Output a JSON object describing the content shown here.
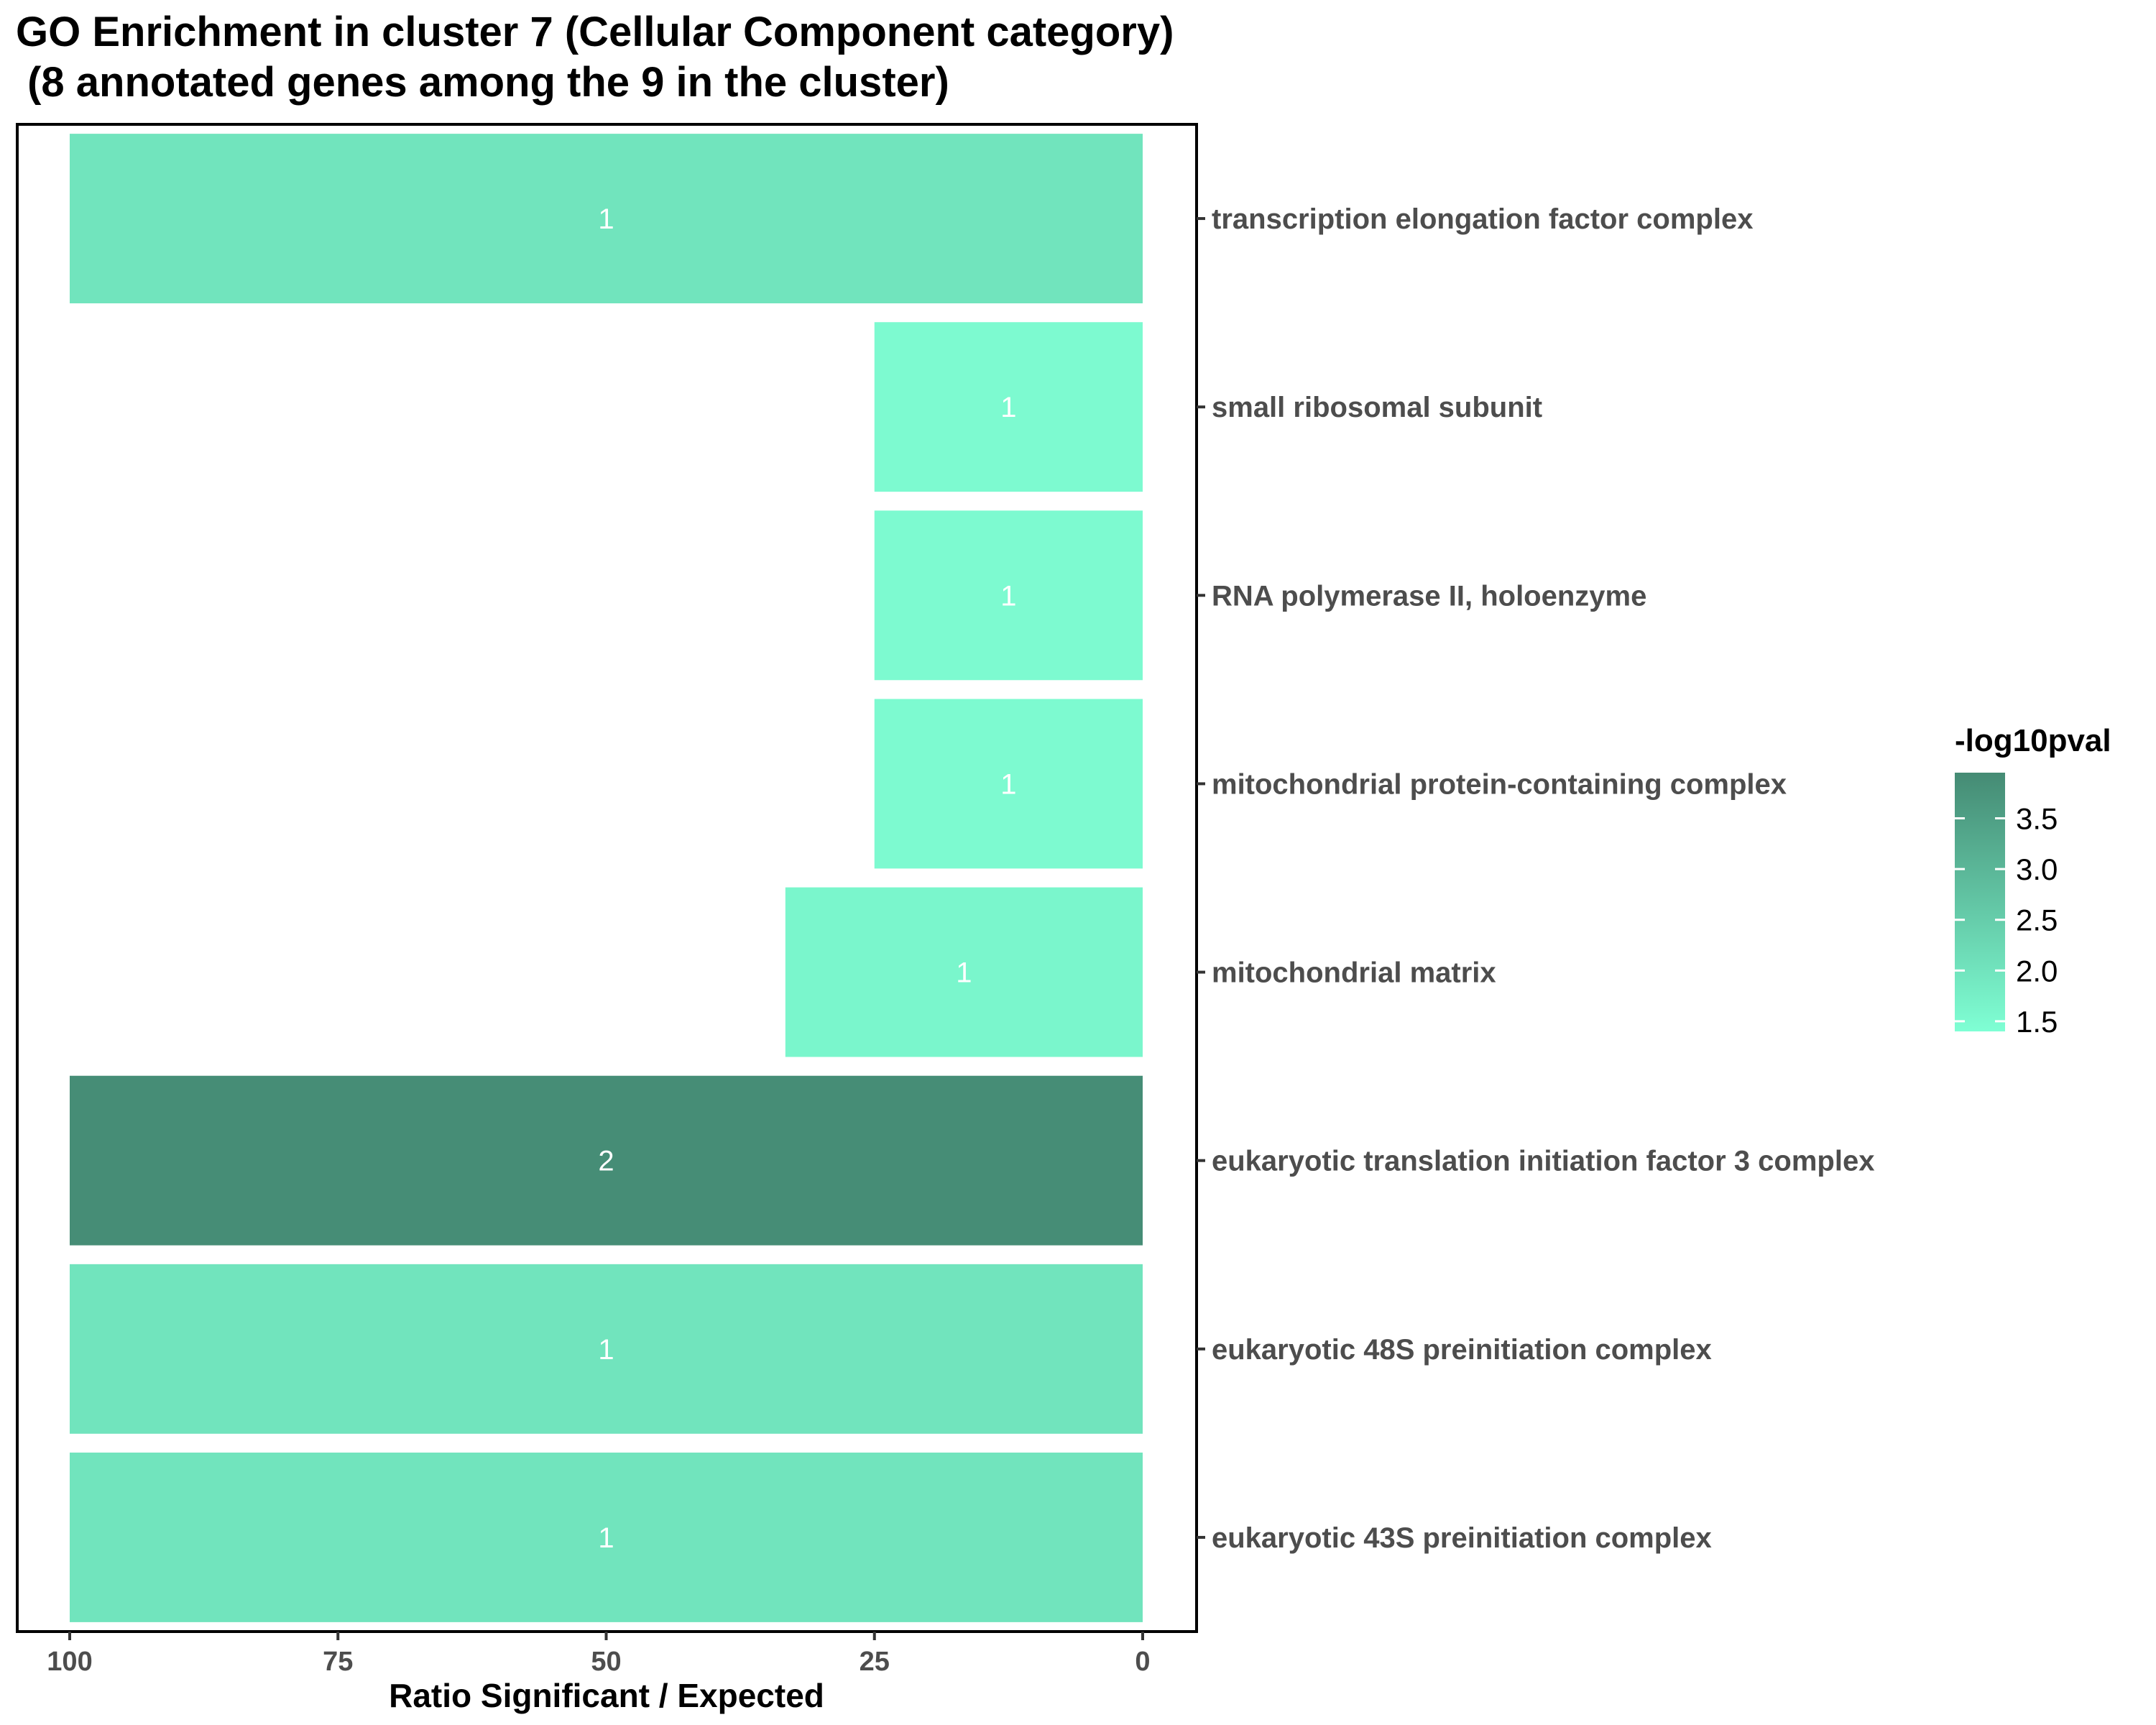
{
  "chart_data": {
    "type": "bar",
    "orientation": "horizontal",
    "title_line1": "GO Enrichment in cluster 7 (Cellular Component category)",
    "title_line2": " (8 annotated genes among the 9 in the cluster)",
    "xlabel": "Ratio Significant / Expected",
    "xlim": [
      100,
      0
    ],
    "x_reversed": true,
    "x_ticks": [
      100,
      75,
      50,
      25,
      0
    ],
    "grid": false,
    "categories": [
      "transcription elongation factor complex",
      "small ribosomal subunit",
      "RNA polymerase II, holoenzyme",
      "mitochondrial protein-containing complex",
      "mitochondrial matrix",
      "eukaryotic translation initiation factor 3 complex",
      "eukaryotic 48S preinitiation complex",
      "eukaryotic 43S preinitiation complex"
    ],
    "values": [
      100,
      25,
      25,
      25,
      33.3,
      100,
      100,
      100
    ],
    "bar_labels": [
      "1",
      "1",
      "1",
      "1",
      "1",
      "2",
      "1",
      "1"
    ],
    "neg_log10_pval": [
      2.0,
      1.5,
      1.5,
      1.5,
      1.6,
      3.9,
      2.0,
      2.0
    ],
    "legend": {
      "title": "-log10pval",
      "placement": "right",
      "min": 1.4,
      "max": 3.95,
      "ticks": [
        "1.5",
        "2.0",
        "2.5",
        "3.0",
        "3.5"
      ],
      "tick_values": [
        1.5,
        2.0,
        2.5,
        3.0,
        3.5
      ],
      "color_low": "#7fffd4",
      "color_high": "#458b74"
    }
  }
}
